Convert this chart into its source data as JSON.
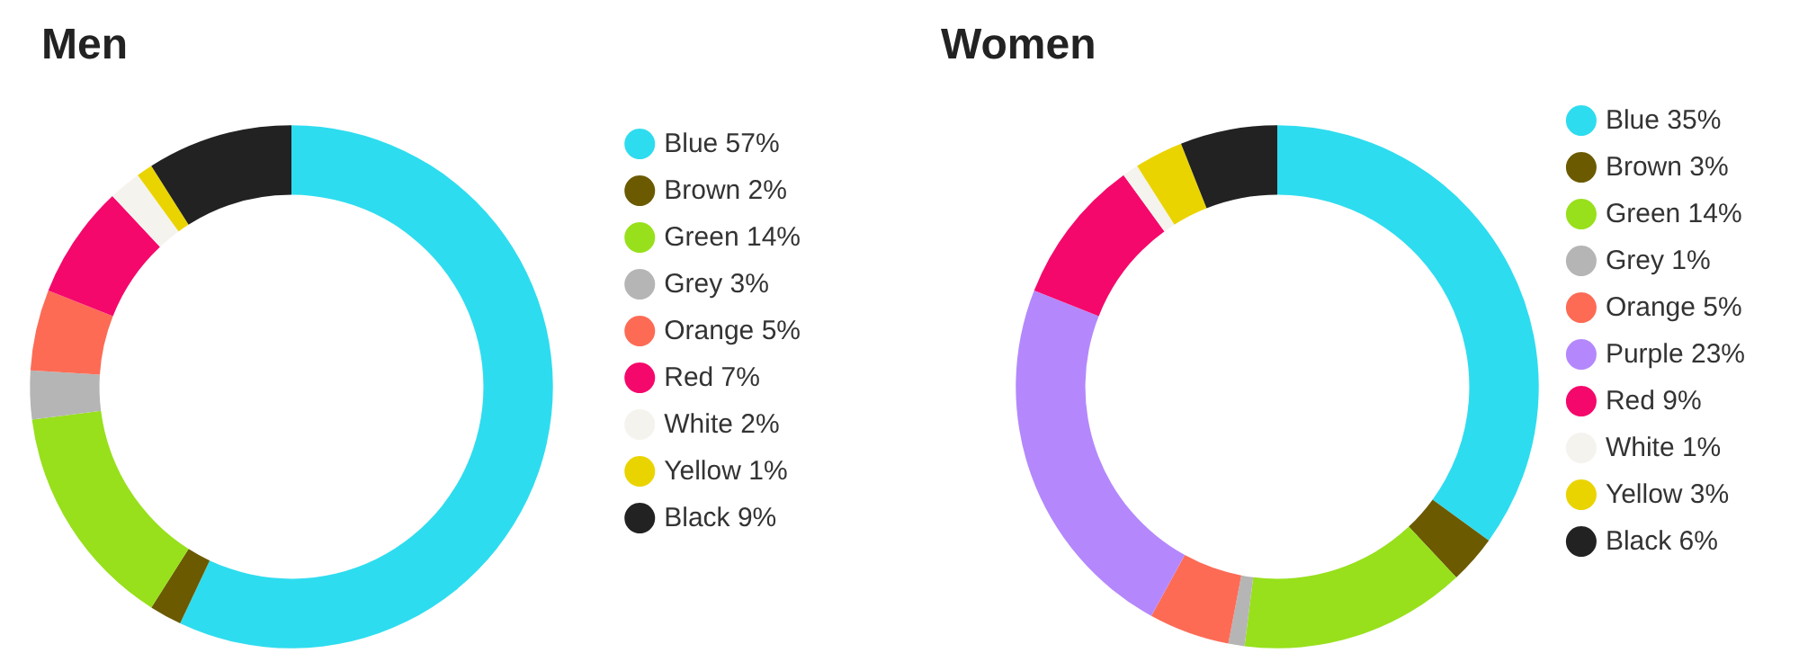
{
  "chart_data": [
    {
      "type": "donut",
      "title": "Men",
      "categories": [
        "Blue 57%",
        "Brown 2%",
        "Green 14%",
        "Grey 3%",
        "Orange 5%",
        "Red 7%",
        "White 2%",
        "Yellow 1%",
        "Black 9%"
      ],
      "values": [
        57,
        2,
        14,
        3,
        5,
        7,
        2,
        1,
        9
      ],
      "colors": [
        "#2edcef",
        "#6b5a00",
        "#97e01b",
        "#b5b5b5",
        "#fd6b55",
        "#f5086b",
        "#f5f3ee",
        "#ead400",
        "#222222"
      ],
      "legend": "right"
    },
    {
      "type": "donut",
      "title": "Women",
      "categories": [
        "Blue 35%",
        "Brown 3%",
        "Green 14%",
        "Grey 1%",
        "Orange 5%",
        "Purple 23%",
        "Red 9%",
        "White 1%",
        "Yellow 3%",
        "Black 6%"
      ],
      "values": [
        35,
        3,
        14,
        1,
        5,
        23,
        9,
        1,
        3,
        6
      ],
      "colors": [
        "#2edcef",
        "#6b5a00",
        "#97e01b",
        "#b5b5b5",
        "#fd6b55",
        "#b488fc",
        "#f5086b",
        "#f5f3ee",
        "#ead400",
        "#222222"
      ],
      "legend": "right"
    }
  ]
}
